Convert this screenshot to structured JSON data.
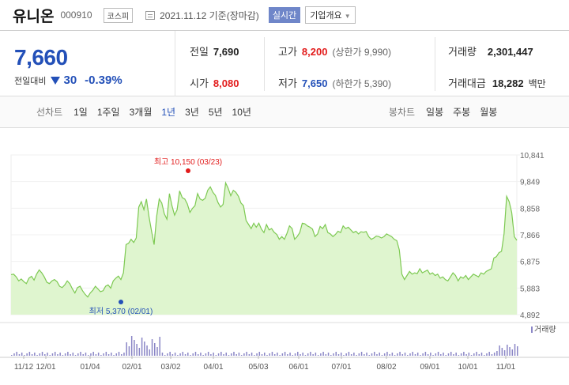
{
  "header": {
    "name": "유니온",
    "code": "000910",
    "market": "코스피",
    "date": "2021.11.12 기준(장마감)",
    "realtime": "실시간",
    "company_info": "기업개요"
  },
  "summary": {
    "price": "7,660",
    "change_label": "전일대비",
    "change": "30",
    "change_pct": "-0.39%",
    "prev_close_label": "전일",
    "prev_close": "7,690",
    "open_label": "시가",
    "open": "8,080",
    "high_label": "고가",
    "high": "8,200",
    "upper_limit": "(상한가 9,990)",
    "low_label": "저가",
    "low": "7,650",
    "lower_limit": "(하한가 5,390)",
    "volume_label": "거래량",
    "volume": "2,301,447",
    "value_label": "거래대금",
    "value": "18,282",
    "value_unit": "백만"
  },
  "periods": {
    "line_label": "선차트",
    "line_items": [
      "1일",
      "1주일",
      "3개월",
      "1년",
      "3년",
      "5년",
      "10년"
    ],
    "active": "1년",
    "candle_label": "봉차트",
    "candle_items": [
      "일봉",
      "주봉",
      "월봉"
    ]
  },
  "colors": {
    "up": "#e21b1b",
    "down": "#2350b8",
    "line": "#7dc952",
    "fill": "#dff5cf"
  },
  "chart_data": {
    "type": "area",
    "y_ticks": [
      "10,841",
      "9,849",
      "8,858",
      "7,866",
      "6,875",
      "5,883",
      "4,892"
    ],
    "ylim": [
      4892,
      10841
    ],
    "x_ticks": [
      "11/12",
      "12/01",
      "01/04",
      "02/01",
      "03/02",
      "04/01",
      "05/03",
      "06/01",
      "07/01",
      "08/02",
      "09/01",
      "10/01",
      "11/01"
    ],
    "max_label": "최고 10,150 (03/23)",
    "min_label": "최저 5,370 (02/01)",
    "volume_label": "거래량",
    "series": [
      {
        "values": [
          6380,
          6400,
          6300,
          6150,
          6220,
          6120,
          6050,
          6250,
          6320,
          6180,
          6400,
          6560,
          6450,
          6300,
          6100,
          6050,
          6150,
          6200,
          6120,
          5950,
          5900,
          6000,
          6150,
          6050,
          5850,
          5700,
          5900,
          5950,
          5780,
          5650,
          5550,
          5700,
          5800,
          5950,
          5850,
          5750,
          5780,
          5950,
          6000,
          5880,
          6150,
          6250,
          6330,
          6200,
          6450,
          7500,
          7550,
          7700,
          7580,
          7750,
          8900,
          9100,
          8800,
          9200,
          8550,
          8000,
          7500,
          8550,
          9200,
          9050,
          8650,
          8450,
          9400,
          8950,
          8600,
          8800,
          9500,
          9250,
          9200,
          9020,
          8700,
          8850,
          8950,
          9400,
          9200,
          9150,
          9230,
          9530,
          9650,
          9450,
          9330,
          9070,
          8900,
          9000,
          9800,
          9600,
          9320,
          9520,
          9450,
          9300,
          9050,
          8950,
          8400,
          8250,
          8100,
          8300,
          8150,
          8300,
          8080,
          7950,
          8250,
          8050,
          8100,
          7960,
          7880,
          7700,
          7800,
          7700,
          7920,
          8200,
          8100,
          7700,
          7800,
          7950,
          8300,
          8280,
          8200,
          8150,
          8080,
          7800,
          7900,
          8180,
          8100,
          8250,
          7950,
          7900,
          7800,
          7880,
          8000,
          7950,
          8200,
          8100,
          8150,
          8050,
          7950,
          8000,
          7900,
          7980,
          7960,
          7990,
          7800,
          7700,
          7750,
          7820,
          7800,
          7750,
          7800,
          7900,
          7850,
          7800,
          7700,
          7650,
          7300,
          6400,
          6200,
          6350,
          6500,
          6400,
          6450,
          6420,
          6600,
          6450,
          6500,
          6550,
          6400,
          6450,
          6350,
          6400,
          6250,
          6300,
          6200,
          6150,
          6300,
          6450,
          6350,
          6150,
          6300,
          6250,
          6350,
          6200,
          6300,
          6400,
          6350,
          6300,
          6450,
          6400,
          6500,
          6550,
          6600,
          7000,
          7050,
          7200,
          7250,
          7900,
          9300,
          9100,
          8700,
          7800,
          7660
        ]
      }
    ]
  }
}
